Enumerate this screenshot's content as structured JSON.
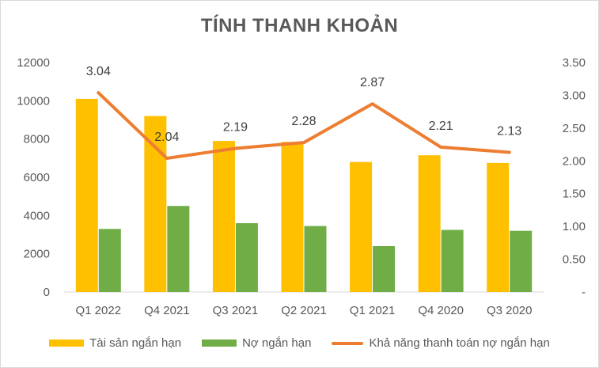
{
  "chart_data": {
    "type": "bar",
    "title": "TÍNH THANH KHOẢN",
    "categories": [
      "Q1 2022",
      "Q4 2021",
      "Q3 2021",
      "Q2 2021",
      "Q1 2021",
      "Q4 2020",
      "Q3 2020"
    ],
    "series": [
      {
        "name": "Tài sản ngắn hạn",
        "type": "bar",
        "axis": "left",
        "color": "#ffc000",
        "values": [
          10100,
          9200,
          7900,
          7850,
          6800,
          7150,
          6750
        ]
      },
      {
        "name": "Nợ ngắn hạn",
        "type": "bar",
        "axis": "left",
        "color": "#70ad47",
        "values": [
          3300,
          4500,
          3600,
          3450,
          2400,
          3250,
          3200
        ]
      },
      {
        "name": "Khả năng thanh toán nợ ngắn hạn",
        "type": "line",
        "axis": "right",
        "color": "#ed7d31",
        "values": [
          3.04,
          2.04,
          2.19,
          2.28,
          2.87,
          2.21,
          2.13
        ],
        "labels": [
          "3.04",
          "2.04",
          "2.19",
          "2.28",
          "2.87",
          "2.21",
          "2.13"
        ]
      }
    ],
    "y_left": {
      "min": 0,
      "max": 12000,
      "ticks": [
        "0",
        "2000",
        "4000",
        "6000",
        "8000",
        "10000",
        "12000"
      ]
    },
    "y_right": {
      "min": 0,
      "max": 3.5,
      "ticks": [
        "-",
        "0.50",
        "1.00",
        "1.50",
        "2.00",
        "2.50",
        "3.00",
        "3.50"
      ]
    },
    "grid": false,
    "legend_position": "bottom"
  }
}
